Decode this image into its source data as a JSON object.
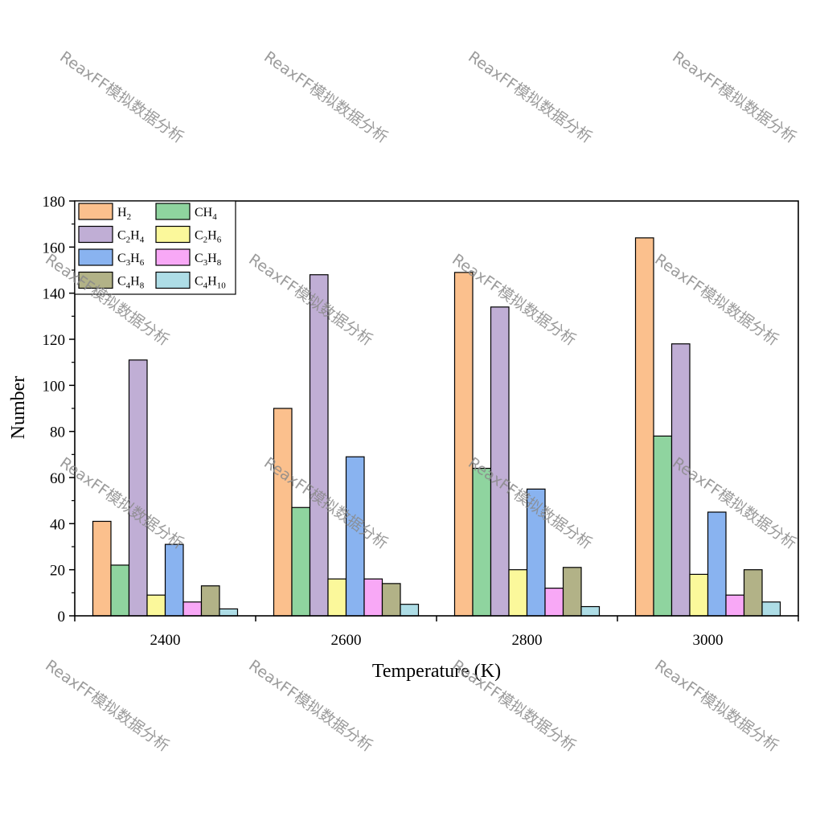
{
  "watermark_text": "ReaxFF模拟数据分析",
  "chart_data": {
    "type": "bar",
    "title": "",
    "xlabel": "Temperature (K)",
    "ylabel": "Number",
    "categories": [
      "2400",
      "2600",
      "2800",
      "3000"
    ],
    "ylim": [
      0,
      180
    ],
    "yticks": [
      0,
      20,
      40,
      60,
      80,
      100,
      120,
      140,
      160,
      180
    ],
    "legend_position": "top-left",
    "grid": false,
    "series": [
      {
        "name": "H2",
        "base": "H",
        "sub": "2",
        "base2": "",
        "sub2": "",
        "color": "#fbc08d",
        "values": [
          41,
          90,
          149,
          164
        ]
      },
      {
        "name": "CH4",
        "base": "CH",
        "sub": "4",
        "base2": "",
        "sub2": "",
        "color": "#8fd49f",
        "values": [
          22,
          47,
          64,
          78
        ]
      },
      {
        "name": "C2H4",
        "base": "C",
        "sub": "2",
        "base2": "H",
        "sub2": "4",
        "color": "#c0aed5",
        "values": [
          111,
          148,
          134,
          118
        ]
      },
      {
        "name": "C2H6",
        "base": "C",
        "sub": "2",
        "base2": "H",
        "sub2": "6",
        "color": "#fbf89b",
        "values": [
          9,
          16,
          20,
          18
        ]
      },
      {
        "name": "C3H6",
        "base": "C",
        "sub": "3",
        "base2": "H",
        "sub2": "6",
        "color": "#89b3f0",
        "values": [
          31,
          69,
          55,
          45
        ]
      },
      {
        "name": "C3H8",
        "base": "C",
        "sub": "3",
        "base2": "H",
        "sub2": "8",
        "color": "#f8a8f6",
        "values": [
          6,
          16,
          12,
          9
        ]
      },
      {
        "name": "C4H8",
        "base": "C",
        "sub": "4",
        "base2": "H",
        "sub2": "8",
        "color": "#b2b287",
        "values": [
          13,
          14,
          21,
          20
        ]
      },
      {
        "name": "C4H10",
        "base": "C",
        "sub": "4",
        "base2": "H",
        "sub2": "10",
        "color": "#aedde6",
        "values": [
          3,
          5,
          4,
          6
        ]
      }
    ]
  }
}
